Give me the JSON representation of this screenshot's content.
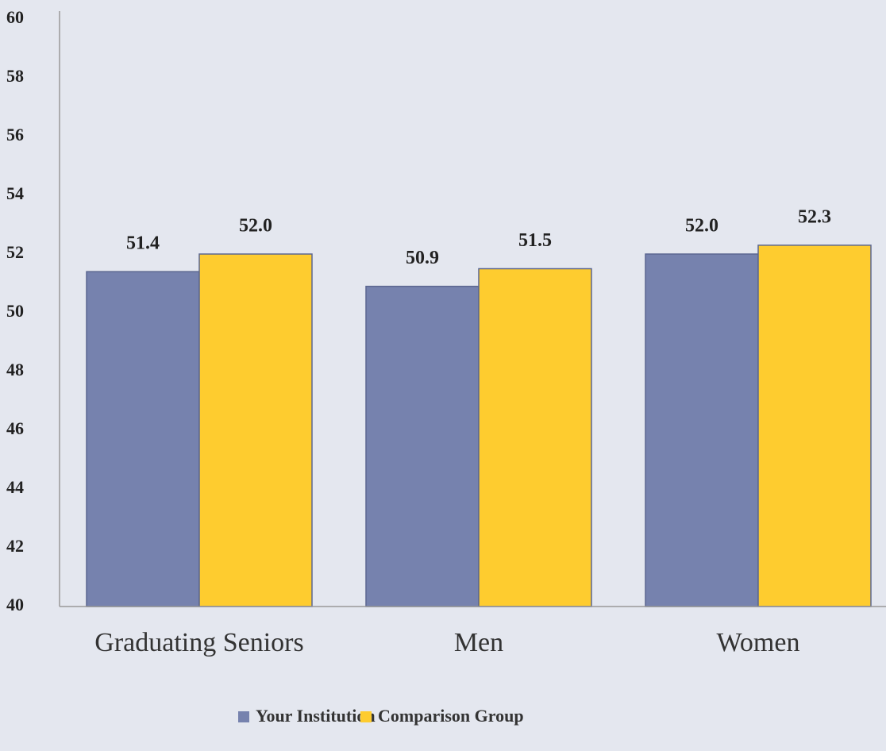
{
  "chart_data": {
    "type": "bar",
    "categories": [
      "Graduating Seniors",
      "Men",
      "Women"
    ],
    "series": [
      {
        "name": "Your Institution",
        "color": "#7682ae",
        "values": [
          51.4,
          50.9,
          52.0
        ],
        "value_labels": [
          "51.4",
          "50.9",
          "52.0"
        ]
      },
      {
        "name": "Comparison Group",
        "color": "#fecc2f",
        "values": [
          52.0,
          51.5,
          52.3
        ],
        "value_labels": [
          "52.0",
          "51.5",
          "52.3"
        ]
      }
    ],
    "ylim": [
      40,
      60
    ],
    "yticks": [
      40,
      42,
      44,
      46,
      48,
      50,
      52,
      54,
      56,
      58,
      60
    ],
    "grid": false,
    "legend": "bottom"
  }
}
